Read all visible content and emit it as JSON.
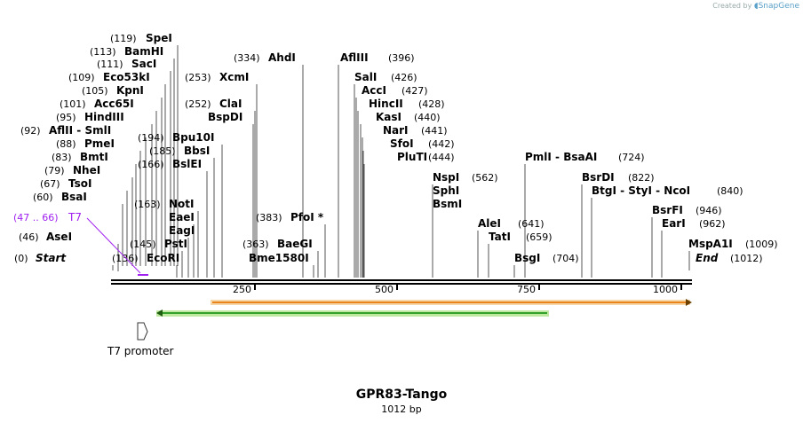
{
  "credit": {
    "prefix": "Created by",
    "brand": "SnapGene"
  },
  "title": "GPR83-Tango",
  "subtitle": "1012 bp",
  "colors": {
    "primer": "#a020f0",
    "green": "#33a02c",
    "orange": "#e8841a",
    "backbone": "#000000"
  },
  "axis": {
    "ticks": [
      "250",
      "500",
      "750",
      "1000"
    ]
  },
  "sites": [
    {
      "pos": "(119)",
      "name": "SpeI"
    },
    {
      "pos": "(113)",
      "name": "BamHI"
    },
    {
      "pos": "(111)",
      "name": "SacI"
    },
    {
      "pos": "(109)",
      "name": "Eco53kI"
    },
    {
      "pos": "(105)",
      "name": "KpnI"
    },
    {
      "pos": "(101)",
      "name": "Acc65I"
    },
    {
      "pos": "(95)",
      "name": "HindIII"
    },
    {
      "pos": "(92)",
      "name": "AflII  - SmlI"
    },
    {
      "pos": "(88)",
      "name": "PmeI"
    },
    {
      "pos": "(83)",
      "name": "BmtI"
    },
    {
      "pos": "(79)",
      "name": "NheI"
    },
    {
      "pos": "(67)",
      "name": "TsoI"
    },
    {
      "pos": "(60)",
      "name": "BsaI"
    },
    {
      "pos": "(46)",
      "name": "AseI"
    },
    {
      "pos": "(0)",
      "name": "Start"
    },
    {
      "pos": "(194)",
      "name": "Bpu10I"
    },
    {
      "pos": "(185)",
      "name": "BbsI"
    },
    {
      "pos": "(166)",
      "name": "BslEI"
    },
    {
      "pos": "(163)",
      "name": "NotI"
    },
    {
      "pos": "",
      "name": "EaeI"
    },
    {
      "pos": "",
      "name": "EagI"
    },
    {
      "pos": "(145)",
      "name": "PstI"
    },
    {
      "pos": "(136)",
      "name": "EcoRI"
    },
    {
      "pos": "(253)",
      "name": "XcmI"
    },
    {
      "pos": "(252)",
      "name": "ClaI"
    },
    {
      "pos": "",
      "name": "BspDI"
    },
    {
      "pos": "(334)",
      "name": "AhdI"
    },
    {
      "pos": "(383)",
      "name": "PfoI *"
    },
    {
      "pos": "(363)",
      "name": "BaeGI"
    },
    {
      "pos": "",
      "name": "Bme1580I"
    },
    {
      "pos": "(396)",
      "name": "AflIII"
    },
    {
      "pos": "(426)",
      "name": "SalI"
    },
    {
      "pos": "(427)",
      "name": "AccI"
    },
    {
      "pos": "(428)",
      "name": "HincII"
    },
    {
      "pos": "(440)",
      "name": "KasI"
    },
    {
      "pos": "(441)",
      "name": "NarI"
    },
    {
      "pos": "(442)",
      "name": "SfoI"
    },
    {
      "pos": "(444)",
      "name": "PluTI"
    },
    {
      "pos": "(562)",
      "name": "NspI"
    },
    {
      "pos": "",
      "name": "SphI"
    },
    {
      "pos": "",
      "name": "BsmI"
    },
    {
      "pos": "(641)",
      "name": "AleI"
    },
    {
      "pos": "(659)",
      "name": "TatI"
    },
    {
      "pos": "(704)",
      "name": "BsgI"
    },
    {
      "pos": "(724)",
      "name": "PmlI  - BsaAI"
    },
    {
      "pos": "(822)",
      "name": "BsrDI"
    },
    {
      "pos": "(840)",
      "name": "BtgI  - StyI  - NcoI"
    },
    {
      "pos": "(946)",
      "name": "BsrFI"
    },
    {
      "pos": "(962)",
      "name": "EarI"
    },
    {
      "pos": "(1009)",
      "name": "MspA1I"
    },
    {
      "pos": "(1012)",
      "name": "End"
    }
  ],
  "primer": {
    "range": "(47 .. 66)",
    "name": "T7"
  },
  "features": {
    "promoter_label": "T7 promoter"
  }
}
